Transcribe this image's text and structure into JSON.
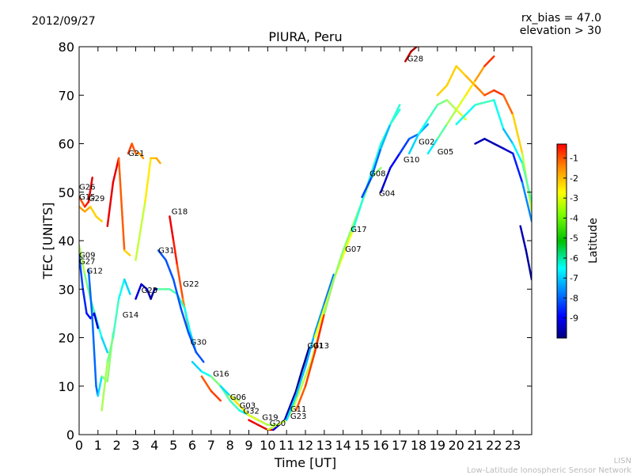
{
  "header": {
    "date": "2012/09/27",
    "params": [
      "rx_bias = 47.0",
      "elevation > 30"
    ]
  },
  "footer": {
    "credit": [
      "LISN",
      "Low-Latitude Ionospheric Sensor Network"
    ]
  },
  "chart_data": {
    "type": "scatter",
    "title": "PIURA, Peru",
    "xlabel": "Time [UT]",
    "ylabel": "TEC [UNITS]",
    "xlim": [
      0,
      24
    ],
    "ylim": [
      0,
      80
    ],
    "x_ticks": [
      "0",
      "1",
      "2",
      "3",
      "4",
      "5",
      "6",
      "7",
      "8",
      "9",
      "10",
      "11",
      "12",
      "13",
      "14",
      "15",
      "16",
      "17",
      "18",
      "19",
      "20",
      "21",
      "22",
      "23"
    ],
    "y_ticks": [
      "0",
      "10",
      "20",
      "30",
      "40",
      "50",
      "60",
      "70",
      "80"
    ],
    "grid": false,
    "colorbar": {
      "label": "Latitude",
      "range": [
        -10,
        -0.3
      ],
      "ticks": [
        "-1",
        "-2",
        "-3",
        "-4",
        "-5",
        "-6",
        "-7",
        "-8",
        "-9"
      ],
      "colormap": "jet"
    },
    "series": [
      {
        "name": "G26",
        "x": [
          0.0,
          0.3,
          0.5,
          0.7
        ],
        "y": [
          49,
          47,
          48,
          53
        ],
        "lat": [
          -2.5,
          -2.0,
          -1.5,
          -1.0
        ]
      },
      {
        "name": "G15",
        "x": [
          0.0,
          0.3,
          0.6
        ],
        "y": [
          47,
          46,
          47
        ],
        "lat": [
          -3.0,
          -3.0,
          -3.2
        ]
      },
      {
        "name": "G29",
        "x": [
          0.6,
          0.9,
          1.2
        ],
        "y": [
          47,
          45,
          44
        ],
        "lat": [
          -3.5,
          -3.5,
          -3.5
        ]
      },
      {
        "name": "G09",
        "x": [
          0.0,
          0.3,
          0.6,
          0.9,
          1.2,
          1.5
        ],
        "y": [
          39,
          33,
          28,
          24,
          20,
          17
        ],
        "lat": [
          -4.5,
          -5.0,
          -5.5,
          -6.0,
          -6.5,
          -7.0
        ]
      },
      {
        "name": "G27",
        "x": [
          0.0,
          0.2,
          0.4,
          0.6,
          0.8,
          1.0
        ],
        "y": [
          37,
          30,
          25,
          24,
          25,
          22
        ],
        "lat": [
          -8.0,
          -8.3,
          -8.6,
          -8.8,
          -9.0,
          -9.5
        ]
      },
      {
        "name": "G12",
        "x": [
          0.5,
          0.7,
          0.9,
          1.0,
          1.2,
          1.5,
          1.8
        ],
        "y": [
          34,
          24,
          10,
          8,
          12,
          11,
          21
        ],
        "lat": [
          -7.8,
          -7.8,
          -7.8,
          -7.8,
          -5.5,
          -5.0,
          -5.0
        ]
      },
      {
        "name": "G14",
        "x": [
          1.2,
          1.5,
          1.8,
          2.1,
          2.4,
          2.7
        ],
        "y": [
          5,
          15,
          20,
          28,
          32,
          29
        ],
        "lat": [
          -4.5,
          -5.0,
          -5.5,
          -6.0,
          -6.5,
          -7.0
        ]
      },
      {
        "name": "G28",
        "x": [
          1.5,
          1.8,
          2.1,
          2.4,
          2.7
        ],
        "y": [
          43,
          52,
          57,
          38,
          37
        ],
        "lat": [
          -1.3,
          -1.3,
          -1.3,
          -3.5,
          -3.5
        ]
      },
      {
        "name": "G21",
        "x": [
          2.6,
          2.8,
          3.0,
          3.2,
          3.4
        ],
        "y": [
          58,
          60,
          58,
          58,
          57
        ],
        "lat": [
          -2.0,
          -2.2,
          -2.5,
          -2.8,
          -3.0
        ]
      },
      {
        "name": "G25",
        "x": [
          3.0,
          3.3,
          3.6,
          3.8,
          4.0,
          4.2
        ],
        "y": [
          28,
          31,
          30,
          28,
          30,
          30
        ],
        "lat": [
          -9.0,
          -9.2,
          -9.4,
          -9.6,
          -9.8,
          -9.9
        ]
      },
      {
        "name": "G31",
        "x": [
          3.0,
          3.5,
          3.8,
          4.1,
          4.3
        ],
        "y": [
          36,
          48,
          57,
          57,
          56
        ],
        "lat": [
          -5.0,
          -4.0,
          -3.5,
          -3.2,
          -3.0
        ]
      },
      {
        "name": "G18",
        "x": [
          4.8,
          5.0,
          5.2,
          5.5,
          5.8,
          6.1
        ],
        "y": [
          45,
          40,
          35,
          28,
          22,
          18
        ],
        "lat": [
          -1.2,
          -1.5,
          -2.0,
          -2.5,
          -3.0,
          -3.5
        ]
      },
      {
        "name": "G22",
        "x": [
          4.2,
          4.8,
          5.2,
          5.6,
          5.9,
          6.2
        ],
        "y": [
          30,
          30,
          29,
          26,
          21,
          17
        ],
        "lat": [
          -5.5,
          -5.5,
          -5.8,
          -6.0,
          -6.5,
          -7.0
        ]
      },
      {
        "name": "G30",
        "x": [
          4.2,
          4.6,
          5.0,
          5.4,
          5.8,
          6.2,
          6.6
        ],
        "y": [
          38,
          36,
          32,
          26,
          21,
          17,
          15
        ],
        "lat": [
          -8.0,
          -8.0,
          -8.0,
          -8.0,
          -8.0,
          -8.0,
          -8.0
        ]
      },
      {
        "name": "G16",
        "x": [
          6.0,
          6.5,
          7.0,
          7.5,
          8.0,
          8.5
        ],
        "y": [
          15,
          13,
          12,
          10,
          8,
          7
        ],
        "lat": [
          -7.0,
          -6.5,
          -6.0,
          -5.5,
          -5.0,
          -4.5
        ]
      },
      {
        "name": "G06",
        "x": [
          6.5,
          7.0,
          7.5
        ],
        "y": [
          12,
          9,
          7
        ],
        "lat": [
          -2.5,
          -2.2,
          -2.0
        ]
      },
      {
        "name": "G03",
        "x": [
          7.0,
          7.5,
          8.0,
          8.5,
          9.0,
          9.5
        ],
        "y": [
          12,
          10,
          7,
          5,
          4,
          3
        ],
        "lat": [
          -5.0,
          -5.3,
          -5.6,
          -6.0,
          -6.3,
          -6.6
        ]
      },
      {
        "name": "G32",
        "x": [
          7.5,
          8.0,
          8.5,
          9.0,
          9.5,
          10.0
        ],
        "y": [
          10,
          8,
          6,
          4,
          3,
          2
        ],
        "lat": [
          -6.5,
          -6.8,
          -7.0,
          -7.3,
          -7.6,
          -8.0
        ]
      },
      {
        "name": "G19",
        "x": [
          8.0,
          8.5,
          9.0,
          9.5,
          10.0,
          10.5
        ],
        "y": [
          8,
          6,
          4,
          3,
          2,
          2
        ],
        "lat": [
          -3.5,
          -3.8,
          -4.0,
          -4.3,
          -4.6,
          -5.0
        ]
      },
      {
        "name": "G20",
        "x": [
          9.0,
          9.5,
          10.0,
          10.3
        ],
        "y": [
          3,
          2,
          1,
          1
        ],
        "lat": [
          -1.5,
          -1.3,
          -1.2,
          -1.2
        ]
      },
      {
        "name": "G11",
        "x": [
          10.3,
          10.6,
          10.9,
          11.2,
          11.5,
          11.8,
          12.2
        ],
        "y": [
          1,
          2,
          3,
          6,
          9,
          13,
          18
        ],
        "lat": [
          -9.0,
          -9.2,
          -9.4,
          -9.6,
          -9.8,
          -9.9,
          -9.9
        ]
      },
      {
        "name": "G23",
        "x": [
          10.0,
          10.5,
          11.0,
          11.4,
          11.8,
          12.3,
          12.8
        ],
        "y": [
          1,
          2,
          3,
          6,
          10,
          15,
          22
        ],
        "lat": [
          -4.5,
          -4.5,
          -4.5,
          -4.5,
          -4.5,
          -4.5,
          -4.5
        ]
      },
      {
        "name": "G01",
        "x": [
          11.0,
          11.5,
          12.0,
          12.5,
          13.0,
          13.5
        ],
        "y": [
          3,
          8,
          14,
          21,
          27,
          33
        ],
        "lat": [
          -6.5,
          -6.8,
          -7.0,
          -7.2,
          -7.5,
          -7.8
        ]
      },
      {
        "name": "G13",
        "x": [
          11.5,
          12.0,
          12.5,
          13.0,
          13.5
        ],
        "y": [
          5,
          10,
          17,
          25,
          32
        ],
        "lat": [
          -2.5,
          -2.2,
          -2.0,
          -1.8,
          -1.5
        ]
      },
      {
        "name": "G07",
        "x": [
          12.5,
          13.0,
          13.5,
          14.0,
          14.5
        ],
        "y": [
          20,
          26,
          32,
          37,
          42
        ],
        "lat": [
          -4.0,
          -4.0,
          -4.0,
          -4.0,
          -4.0
        ]
      },
      {
        "name": "G17",
        "x": [
          13.0,
          13.5,
          14.0,
          14.5,
          15.0,
          15.5,
          16.0
        ],
        "y": [
          25,
          32,
          38,
          43,
          48,
          53,
          55
        ],
        "lat": [
          -5.0,
          -5.0,
          -5.0,
          -5.0,
          -5.0,
          -5.0,
          -5.0
        ]
      },
      {
        "name": "G04",
        "x": [
          14.5,
          15.0,
          15.5,
          16.0,
          16.5,
          17.0
        ],
        "y": [
          42,
          48,
          54,
          60,
          64,
          67
        ],
        "lat": [
          -6.0,
          -6.0,
          -6.0,
          -6.0,
          -6.0,
          -6.0
        ]
      },
      {
        "name": "G08",
        "x": [
          15.0,
          15.5,
          16.0,
          16.5,
          17.0
        ],
        "y": [
          49,
          53,
          59,
          64,
          68
        ],
        "lat": [
          -8.3,
          -8.0,
          -7.5,
          -6.5,
          -5.5
        ]
      },
      {
        "name": "G10",
        "x": [
          16.0,
          16.5,
          17.0,
          17.5,
          18.0,
          18.5
        ],
        "y": [
          50,
          55,
          58,
          61,
          62,
          64
        ],
        "lat": [
          -9.5,
          -9.0,
          -8.5,
          -8.0,
          -7.5,
          -7.0
        ]
      },
      {
        "name": "G02",
        "x": [
          17.5,
          18.0,
          18.5,
          19.0,
          19.5,
          20.0,
          20.5
        ],
        "y": [
          58,
          62,
          65,
          68,
          69,
          67,
          65
        ],
        "lat": [
          -7.0,
          -6.5,
          -6.0,
          -5.5,
          -5.0,
          -4.5,
          -4.0
        ]
      },
      {
        "name": "G05",
        "x": [
          18.5,
          19.0,
          19.5,
          20.0,
          20.5,
          21.0,
          21.5,
          22.0
        ],
        "y": [
          58,
          61,
          64,
          67,
          70,
          73,
          76,
          78
        ],
        "lat": [
          -7.0,
          -6.0,
          -5.0,
          -4.5,
          -4.0,
          -3.5,
          -2.5,
          -1.5
        ]
      },
      {
        "name": "G28",
        "x": [
          17.3,
          17.6,
          17.9
        ],
        "y": [
          77,
          79,
          80
        ],
        "lat": [
          -1.0,
          -0.8,
          -0.6
        ]
      },
      {
        "name": "-",
        "x": [
          19.0,
          19.5,
          20.0,
          20.5,
          21.0,
          21.5,
          22.0,
          22.5,
          23.0,
          23.5,
          24.0
        ],
        "y": [
          70,
          72,
          76,
          74,
          72,
          70,
          71,
          70,
          66,
          58,
          46
        ],
        "lat": [
          -3.5,
          -3.5,
          -3.5,
          -3.5,
          -3.0,
          -2.5,
          -2.0,
          -2.0,
          -3.0,
          -4.0,
          -5.0
        ]
      },
      {
        "name": "-",
        "x": [
          21.0,
          21.5,
          22.0,
          22.5,
          23.0,
          23.5,
          24.0
        ],
        "y": [
          60,
          61,
          60,
          59,
          58,
          52,
          44
        ],
        "lat": [
          -9.5,
          -9.5,
          -9.5,
          -9.5,
          -9.0,
          -8.0,
          -7.0
        ]
      },
      {
        "name": "-",
        "x": [
          20.0,
          21.0,
          22.0,
          22.5,
          23.0,
          23.5,
          24.0
        ],
        "y": [
          64,
          68,
          69,
          63,
          60,
          56,
          48
        ],
        "lat": [
          -6.5,
          -6.0,
          -5.5,
          -7.0,
          -7.0,
          -6.0,
          -5.0
        ]
      },
      {
        "name": "-",
        "x": [
          23.4,
          23.7,
          24.0
        ],
        "y": [
          43,
          38,
          32
        ],
        "lat": [
          -9.5,
          -9.6,
          -9.8
        ]
      }
    ],
    "labels": [
      {
        "text": "G26",
        "x": 0.0,
        "y": 50.5
      },
      {
        "text": "G15",
        "x": 0.0,
        "y": 48.5
      },
      {
        "text": "G29",
        "x": 0.5,
        "y": 48.2
      },
      {
        "text": "G09",
        "x": 0.0,
        "y": 36.5
      },
      {
        "text": "G27",
        "x": 0.0,
        "y": 35.2
      },
      {
        "text": "G12",
        "x": 0.4,
        "y": 33.2
      },
      {
        "text": "G21",
        "x": 2.6,
        "y": 57.5
      },
      {
        "text": "G18",
        "x": 4.9,
        "y": 45.5
      },
      {
        "text": "G31",
        "x": 4.2,
        "y": 37.5
      },
      {
        "text": "G22",
        "x": 5.5,
        "y": 30.5
      },
      {
        "text": "G25",
        "x": 3.3,
        "y": 29.2
      },
      {
        "text": "G14",
        "x": 2.3,
        "y": 24.2
      },
      {
        "text": "G30",
        "x": 5.9,
        "y": 18.5
      },
      {
        "text": "G16",
        "x": 7.1,
        "y": 12.0
      },
      {
        "text": "G06",
        "x": 8.0,
        "y": 7.2
      },
      {
        "text": "G03",
        "x": 8.5,
        "y": 5.5
      },
      {
        "text": "G32",
        "x": 8.7,
        "y": 4.3
      },
      {
        "text": "G19",
        "x": 9.7,
        "y": 3.0
      },
      {
        "text": "G20",
        "x": 10.1,
        "y": 1.8
      },
      {
        "text": "G11",
        "x": 11.2,
        "y": 4.7
      },
      {
        "text": "G23",
        "x": 11.2,
        "y": 3.3
      },
      {
        "text": "G01",
        "x": 12.1,
        "y": 17.8
      },
      {
        "text": "G13",
        "x": 12.4,
        "y": 17.8
      },
      {
        "text": "G07",
        "x": 14.1,
        "y": 37.7
      },
      {
        "text": "G17",
        "x": 14.4,
        "y": 41.8
      },
      {
        "text": "G04",
        "x": 15.9,
        "y": 49.2
      },
      {
        "text": "G08",
        "x": 15.4,
        "y": 53.3
      },
      {
        "text": "G10",
        "x": 17.2,
        "y": 56.2
      },
      {
        "text": "G02",
        "x": 18.0,
        "y": 59.8
      },
      {
        "text": "G05",
        "x": 19.0,
        "y": 57.8
      },
      {
        "text": "G28",
        "x": 17.4,
        "y": 77.0
      }
    ]
  }
}
